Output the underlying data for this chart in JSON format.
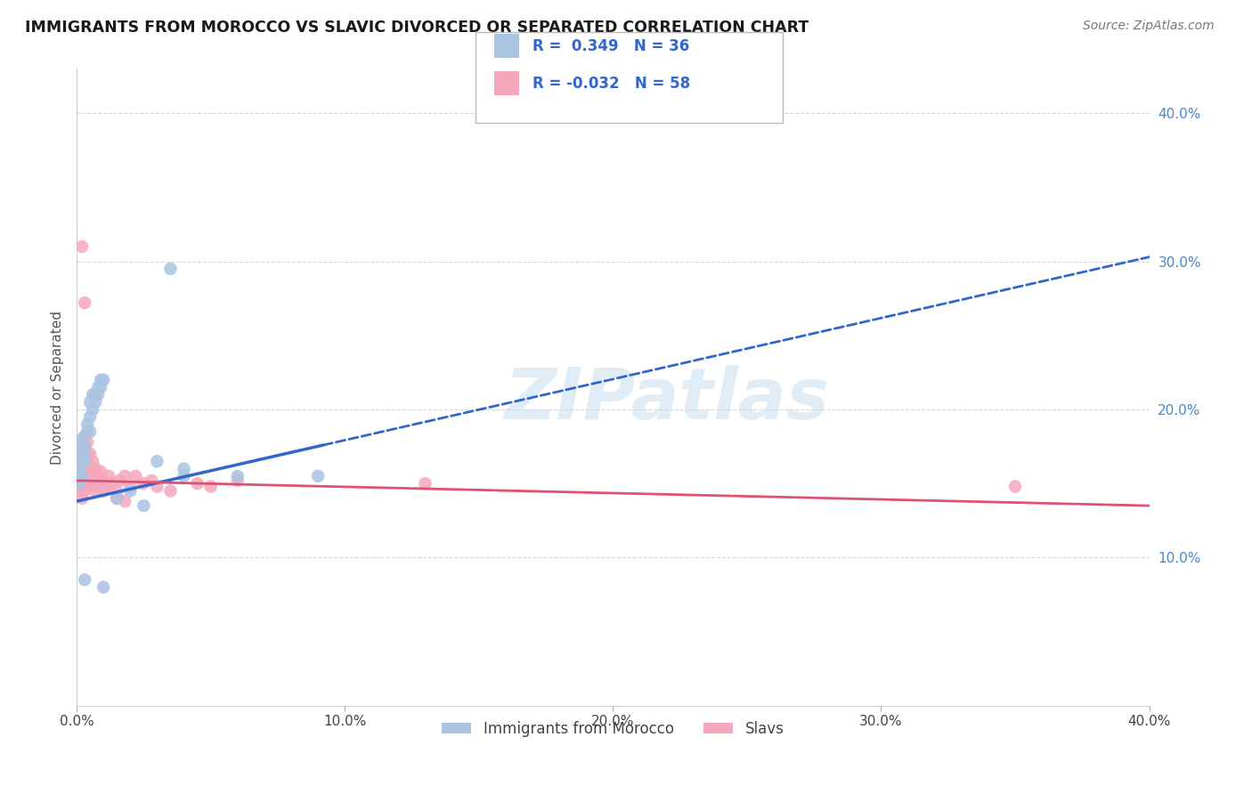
{
  "title": "IMMIGRANTS FROM MOROCCO VS SLAVIC DIVORCED OR SEPARATED CORRELATION CHART",
  "source": "Source: ZipAtlas.com",
  "ylabel": "Divorced or Separated",
  "xlim": [
    0.0,
    0.4
  ],
  "ylim": [
    0.0,
    0.43
  ],
  "xticks": [
    0.0,
    0.1,
    0.2,
    0.3,
    0.4
  ],
  "yticks": [
    0.1,
    0.2,
    0.3,
    0.4
  ],
  "ytick_labels": [
    "10.0%",
    "20.0%",
    "30.0%",
    "40.0%"
  ],
  "xtick_labels": [
    "0.0%",
    "10.0%",
    "20.0%",
    "30.0%",
    "40.0%"
  ],
  "morocco_color": "#aac4e2",
  "slavs_color": "#f5a8bc",
  "trendline_morocco_color": "#3366cc",
  "trendline_slavs_color": "#e05070",
  "watermark_text": "ZIPatlas",
  "morocco_scatter": [
    [
      0.001,
      0.155
    ],
    [
      0.001,
      0.16
    ],
    [
      0.002,
      0.165
    ],
    [
      0.002,
      0.17
    ],
    [
      0.002,
      0.175
    ],
    [
      0.002,
      0.18
    ],
    [
      0.003,
      0.165
    ],
    [
      0.003,
      0.17
    ],
    [
      0.003,
      0.175
    ],
    [
      0.004,
      0.185
    ],
    [
      0.004,
      0.19
    ],
    [
      0.005,
      0.185
    ],
    [
      0.005,
      0.195
    ],
    [
      0.005,
      0.205
    ],
    [
      0.006,
      0.2
    ],
    [
      0.006,
      0.21
    ],
    [
      0.007,
      0.205
    ],
    [
      0.007,
      0.21
    ],
    [
      0.008,
      0.21
    ],
    [
      0.008,
      0.215
    ],
    [
      0.009,
      0.215
    ],
    [
      0.009,
      0.22
    ],
    [
      0.01,
      0.22
    ],
    [
      0.01,
      0.08
    ],
    [
      0.015,
      0.14
    ],
    [
      0.02,
      0.145
    ],
    [
      0.025,
      0.135
    ],
    [
      0.03,
      0.165
    ],
    [
      0.035,
      0.295
    ],
    [
      0.06,
      0.155
    ],
    [
      0.09,
      0.155
    ],
    [
      0.001,
      0.15
    ],
    [
      0.002,
      0.155
    ],
    [
      0.003,
      0.085
    ],
    [
      0.04,
      0.16
    ],
    [
      0.04,
      0.155
    ]
  ],
  "slavs_scatter": [
    [
      0.001,
      0.145
    ],
    [
      0.001,
      0.15
    ],
    [
      0.001,
      0.155
    ],
    [
      0.001,
      0.16
    ],
    [
      0.002,
      0.14
    ],
    [
      0.002,
      0.148
    ],
    [
      0.002,
      0.155
    ],
    [
      0.002,
      0.162
    ],
    [
      0.002,
      0.168
    ],
    [
      0.002,
      0.175
    ],
    [
      0.003,
      0.145
    ],
    [
      0.003,
      0.152
    ],
    [
      0.003,
      0.16
    ],
    [
      0.003,
      0.168
    ],
    [
      0.003,
      0.175
    ],
    [
      0.003,
      0.182
    ],
    [
      0.004,
      0.155
    ],
    [
      0.004,
      0.162
    ],
    [
      0.004,
      0.17
    ],
    [
      0.004,
      0.178
    ],
    [
      0.005,
      0.148
    ],
    [
      0.005,
      0.155
    ],
    [
      0.005,
      0.162
    ],
    [
      0.005,
      0.17
    ],
    [
      0.006,
      0.15
    ],
    [
      0.006,
      0.158
    ],
    [
      0.006,
      0.165
    ],
    [
      0.007,
      0.145
    ],
    [
      0.007,
      0.152
    ],
    [
      0.007,
      0.16
    ],
    [
      0.008,
      0.148
    ],
    [
      0.008,
      0.155
    ],
    [
      0.009,
      0.15
    ],
    [
      0.009,
      0.158
    ],
    [
      0.01,
      0.145
    ],
    [
      0.01,
      0.152
    ],
    [
      0.011,
      0.148
    ],
    [
      0.012,
      0.155
    ],
    [
      0.013,
      0.15
    ],
    [
      0.015,
      0.145
    ],
    [
      0.016,
      0.152
    ],
    [
      0.018,
      0.155
    ],
    [
      0.02,
      0.148
    ],
    [
      0.022,
      0.155
    ],
    [
      0.025,
      0.15
    ],
    [
      0.028,
      0.152
    ],
    [
      0.03,
      0.148
    ],
    [
      0.035,
      0.145
    ],
    [
      0.002,
      0.31
    ],
    [
      0.003,
      0.272
    ],
    [
      0.045,
      0.15
    ],
    [
      0.05,
      0.148
    ],
    [
      0.06,
      0.152
    ],
    [
      0.13,
      0.15
    ],
    [
      0.35,
      0.148
    ],
    [
      0.015,
      0.14
    ],
    [
      0.018,
      0.138
    ]
  ],
  "trendline_morocco_x0": 0.0,
  "trendline_morocco_y0": 0.138,
  "trendline_morocco_x1": 0.4,
  "trendline_morocco_y1": 0.303,
  "trendline_morocco_solid_xmax": 0.092,
  "trendline_slavs_x0": 0.0,
  "trendline_slavs_y0": 0.152,
  "trendline_slavs_x1": 0.4,
  "trendline_slavs_y1": 0.135
}
